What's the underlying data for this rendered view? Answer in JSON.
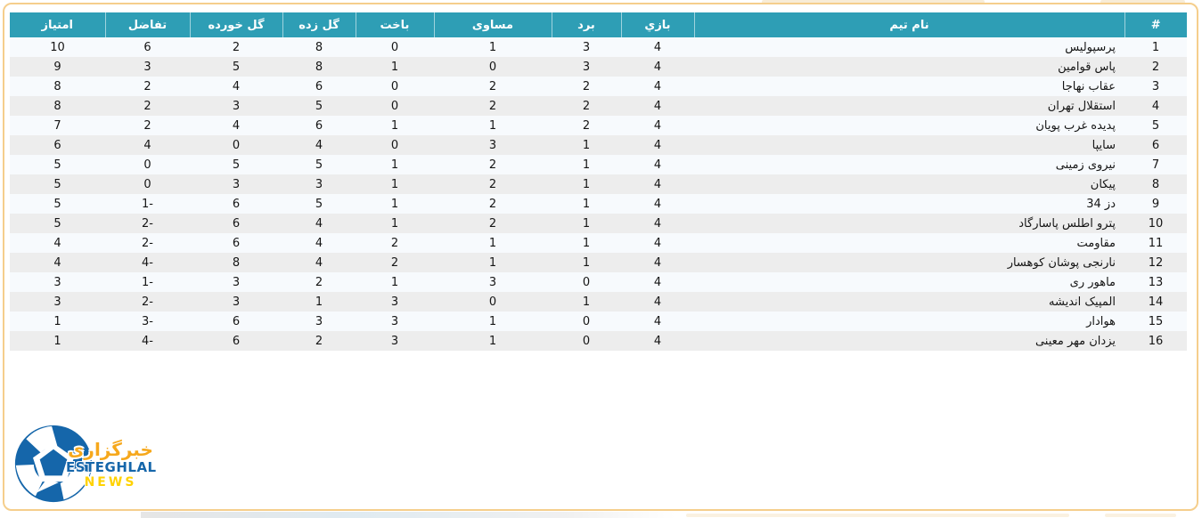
{
  "table": {
    "columns": [
      {
        "key": "rank",
        "label": "#"
      },
      {
        "key": "team",
        "label": "نام تیم"
      },
      {
        "key": "played",
        "label": "بازي"
      },
      {
        "key": "wins",
        "label": "برد"
      },
      {
        "key": "draws",
        "label": "مساوی"
      },
      {
        "key": "losses",
        "label": "باخت"
      },
      {
        "key": "gf",
        "label": "گل زده"
      },
      {
        "key": "ga",
        "label": "گل خورده"
      },
      {
        "key": "gd",
        "label": "تفاضل"
      },
      {
        "key": "points",
        "label": "امتیاز"
      }
    ],
    "rows": [
      {
        "rank": "1",
        "team": "پرسپولیس",
        "played": "4",
        "wins": "3",
        "draws": "1",
        "losses": "0",
        "gf": "8",
        "ga": "2",
        "gd": "6",
        "points": "10"
      },
      {
        "rank": "2",
        "team": "پاس قوامین",
        "played": "4",
        "wins": "3",
        "draws": "0",
        "losses": "1",
        "gf": "8",
        "ga": "5",
        "gd": "3",
        "points": "9"
      },
      {
        "rank": "3",
        "team": "عقاب نهاجا",
        "played": "4",
        "wins": "2",
        "draws": "2",
        "losses": "0",
        "gf": "6",
        "ga": "4",
        "gd": "2",
        "points": "8"
      },
      {
        "rank": "4",
        "team": "استقلال تهران",
        "played": "4",
        "wins": "2",
        "draws": "2",
        "losses": "0",
        "gf": "5",
        "ga": "3",
        "gd": "2",
        "points": "8"
      },
      {
        "rank": "5",
        "team": "پدیده غرب پویان",
        "played": "4",
        "wins": "2",
        "draws": "1",
        "losses": "1",
        "gf": "6",
        "ga": "4",
        "gd": "2",
        "points": "7"
      },
      {
        "rank": "6",
        "team": "سایپا",
        "played": "4",
        "wins": "1",
        "draws": "3",
        "losses": "0",
        "gf": "4",
        "ga": "0",
        "gd": "4",
        "points": "6"
      },
      {
        "rank": "7",
        "team": "نیروی زمینی",
        "played": "4",
        "wins": "1",
        "draws": "2",
        "losses": "1",
        "gf": "5",
        "ga": "5",
        "gd": "0",
        "points": "5"
      },
      {
        "rank": "8",
        "team": "پیکان",
        "played": "4",
        "wins": "1",
        "draws": "2",
        "losses": "1",
        "gf": "3",
        "ga": "3",
        "gd": "0",
        "points": "5"
      },
      {
        "rank": "9",
        "team": "دز 34",
        "played": "4",
        "wins": "1",
        "draws": "2",
        "losses": "1",
        "gf": "5",
        "ga": "6",
        "gd": "1-",
        "points": "5"
      },
      {
        "rank": "10",
        "team": "پترو اطلس پاسارگاد",
        "played": "4",
        "wins": "1",
        "draws": "2",
        "losses": "1",
        "gf": "4",
        "ga": "6",
        "gd": "2-",
        "points": "5"
      },
      {
        "rank": "11",
        "team": "مقاومت",
        "played": "4",
        "wins": "1",
        "draws": "1",
        "losses": "2",
        "gf": "4",
        "ga": "6",
        "gd": "2-",
        "points": "4"
      },
      {
        "rank": "12",
        "team": "نارنجی پوشان کوهسار",
        "played": "4",
        "wins": "1",
        "draws": "1",
        "losses": "2",
        "gf": "4",
        "ga": "8",
        "gd": "4-",
        "points": "4"
      },
      {
        "rank": "13",
        "team": "ماهور ری",
        "played": "4",
        "wins": "0",
        "draws": "3",
        "losses": "1",
        "gf": "2",
        "ga": "3",
        "gd": "1-",
        "points": "3"
      },
      {
        "rank": "14",
        "team": "المپیک اندیشه",
        "played": "4",
        "wins": "1",
        "draws": "0",
        "losses": "3",
        "gf": "1",
        "ga": "3",
        "gd": "2-",
        "points": "3"
      },
      {
        "rank": "15",
        "team": "هوادار",
        "played": "4",
        "wins": "0",
        "draws": "1",
        "losses": "3",
        "gf": "3",
        "ga": "6",
        "gd": "3-",
        "points": "1"
      },
      {
        "rank": "16",
        "team": "یزدان مهر معینی",
        "played": "4",
        "wins": "0",
        "draws": "1",
        "losses": "3",
        "gf": "2",
        "ga": "6",
        "gd": "4-",
        "points": "1"
      }
    ]
  },
  "logo": {
    "farsi": "خبرگزاری",
    "name": "ESTEGHLAL",
    "news": "NEWS"
  },
  "colors": {
    "header_bg": "#2E9EB5",
    "row_odd": "#F7FAFD",
    "row_even": "#EDEDED",
    "frame_border": "#F5CE8C",
    "logo_blue": "#1566AA",
    "logo_orange": "#F6A81C",
    "logo_news_yellow": "#FFD200"
  }
}
